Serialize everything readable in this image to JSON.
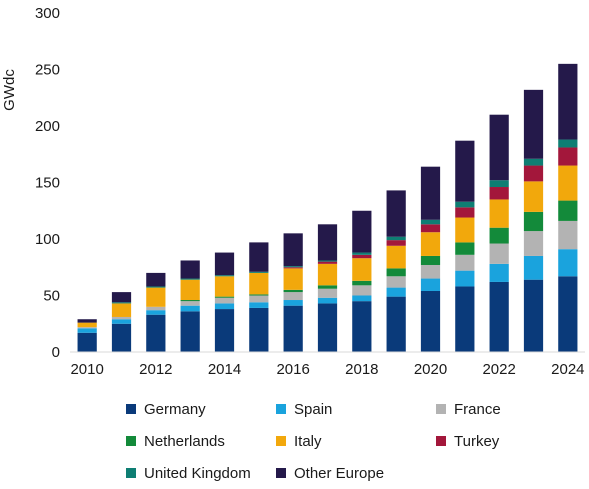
{
  "chart_data": {
    "type": "stacked-bar",
    "title": "",
    "xlabel": "",
    "ylabel": "GWdc",
    "ylim": [
      0,
      300
    ],
    "yticks": [
      "0",
      "50",
      "100",
      "150",
      "200",
      "250",
      "300"
    ],
    "xtick_labels": [
      "2010",
      "2012",
      "2014",
      "2016",
      "2018",
      "2020",
      "2022",
      "2024"
    ],
    "grid": false,
    "legend_position": "bottom",
    "categories": [
      "2010",
      "2011",
      "2012",
      "2013",
      "2014",
      "2015",
      "2016",
      "2017",
      "2018",
      "2019",
      "2020",
      "2021",
      "2022",
      "2023",
      "2024"
    ],
    "series": [
      {
        "name": "Germany",
        "color": "#0a3a7a",
        "values": [
          17,
          25,
          33,
          36,
          38,
          39,
          41,
          43,
          45,
          49,
          54,
          58,
          62,
          64,
          67
        ]
      },
      {
        "name": "Spain",
        "color": "#1aa3dd",
        "values": [
          4,
          4,
          4,
          5,
          5,
          5,
          5,
          5,
          5,
          8,
          11,
          14,
          16,
          21,
          24
        ]
      },
      {
        "name": "France",
        "color": "#b3b3b3",
        "values": [
          1,
          2,
          3,
          4,
          5,
          6,
          7,
          8,
          9,
          10,
          12,
          14,
          18,
          22,
          25
        ]
      },
      {
        "name": "Netherlands",
        "color": "#138a3a",
        "values": [
          0,
          0,
          0,
          1,
          1,
          1,
          2,
          3,
          4,
          7,
          8,
          11,
          14,
          17,
          18
        ]
      },
      {
        "name": "Italy",
        "color": "#f2a80c",
        "values": [
          4,
          12,
          17,
          18,
          18,
          19,
          19,
          19,
          20,
          20,
          21,
          22,
          25,
          27,
          31
        ]
      },
      {
        "name": "Turkey",
        "color": "#a3173b",
        "values": [
          0,
          0,
          0,
          0,
          0,
          0,
          1,
          2,
          3,
          5,
          7,
          9,
          11,
          14,
          16
        ]
      },
      {
        "name": "United Kingdom",
        "color": "#0e7e73",
        "values": [
          0,
          1,
          1,
          1,
          1,
          1,
          1,
          1,
          2,
          3,
          4,
          5,
          6,
          6,
          7
        ]
      },
      {
        "name": "Other Europe",
        "color": "#24194a",
        "values": [
          3,
          9,
          12,
          16,
          20,
          26,
          29,
          32,
          37,
          41,
          47,
          54,
          58,
          61,
          67
        ]
      }
    ]
  }
}
